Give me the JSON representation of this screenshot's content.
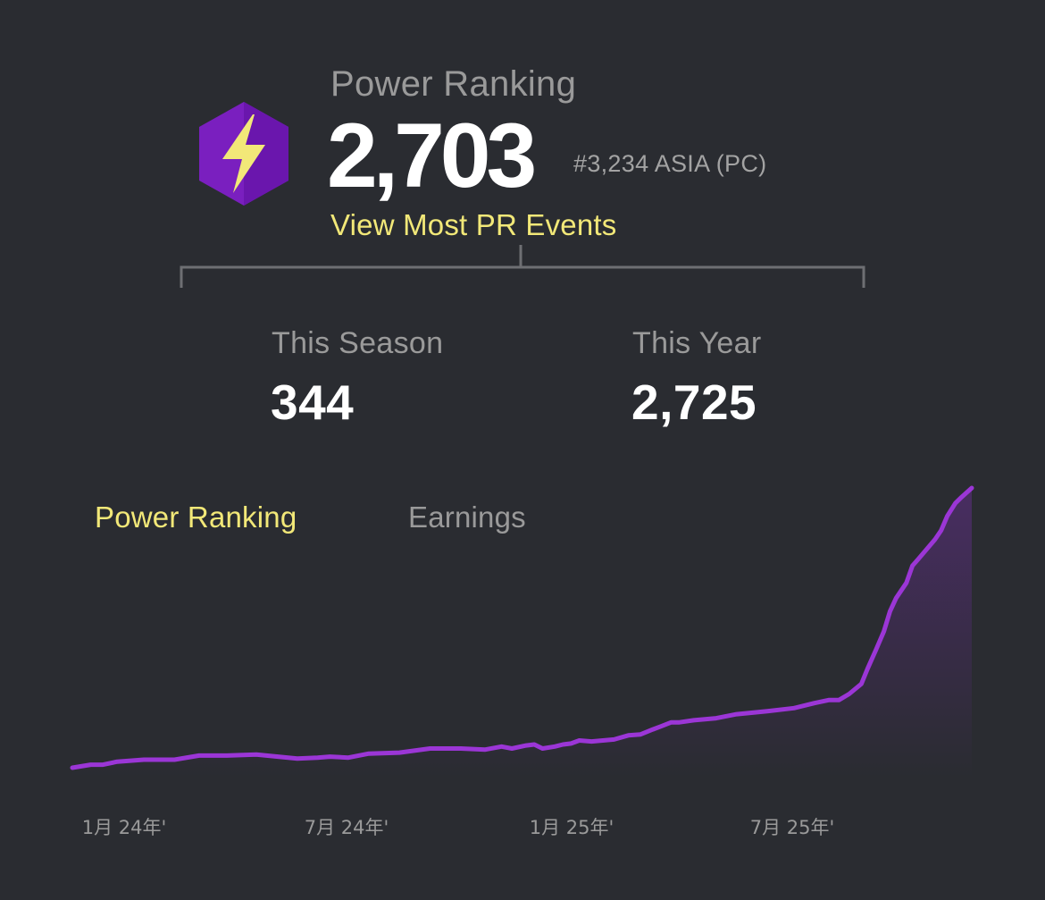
{
  "header": {
    "title": "Power Ranking",
    "score": "2,703",
    "rank": "#3,234 ASIA (PC)",
    "link_label": "View Most PR Events",
    "icon": "lightning-bolt-hexagon-icon"
  },
  "stats": {
    "season_label": "This Season",
    "season_value": "344",
    "year_label": "This Year",
    "year_value": "2,725"
  },
  "tabs": {
    "power_ranking": "Power Ranking",
    "earnings": "Earnings",
    "active": "power_ranking"
  },
  "colors": {
    "background": "#2a2c31",
    "accent": "#f2e878",
    "line": "#9b36d6",
    "muted": "#9a9a9a"
  },
  "chart_data": {
    "type": "area",
    "x_tick_labels": [
      "1月 24年'",
      "7月 24年'",
      "1月 25年'",
      "7月 25年'"
    ],
    "y_axis_shown": false,
    "grid": false,
    "series": [
      {
        "x": [
          0.0,
          0.3,
          0.9,
          1.5,
          2.2,
          3.5,
          5.0,
          6.2,
          7.5,
          9.0,
          11.0,
          12.0,
          12.6,
          13.5,
          14.5,
          16.0,
          17.5,
          19.0,
          20.2,
          21.0,
          21.5,
          22.2,
          22.6,
          23.0,
          23.6,
          24.0,
          24.4,
          24.8,
          25.4,
          26.5,
          27.2,
          27.8,
          28.4,
          28.8,
          29.3,
          29.7,
          30.4,
          31.5,
          32.5,
          34.0,
          35.3,
          36.3,
          37.0,
          37.5,
          38.0,
          38.6,
          38.9,
          39.3,
          39.7,
          40.0,
          40.3,
          40.8,
          41.1,
          41.4,
          42.2,
          42.5,
          42.8,
          43.2,
          43.5,
          44.0
        ],
        "values": [
          0,
          1,
          3,
          3,
          6,
          8,
          8,
          12,
          12,
          13,
          9,
          10,
          11,
          10,
          14,
          15,
          19,
          19,
          18,
          21,
          19,
          22,
          23,
          19,
          21,
          23,
          24,
          27,
          26,
          28,
          32,
          33,
          38,
          41,
          45,
          45,
          47,
          49,
          53,
          56,
          59,
          64,
          67,
          67,
          73,
          83,
          98,
          116,
          135,
          155,
          168,
          183,
          200,
          207,
          226,
          235,
          249,
          262,
          268,
          277
        ]
      }
    ]
  }
}
